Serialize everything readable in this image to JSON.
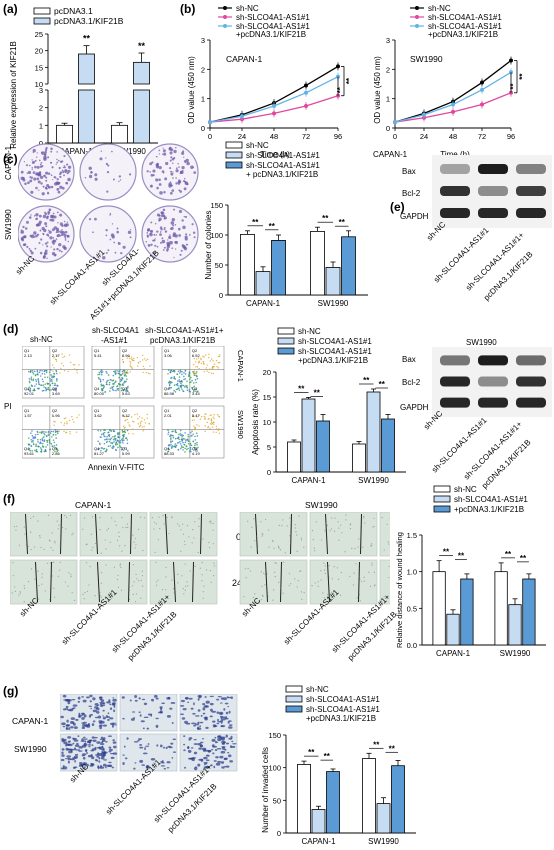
{
  "panels": {
    "a": {
      "label": "(a)",
      "ylabel": "Relative expression of KIF21B",
      "legend": [
        "pcDNA3.1",
        "pcDNA3.1/KIF21B"
      ],
      "categories": [
        "CAPAN-1",
        "SW1990"
      ],
      "sig": "**"
    },
    "b": {
      "label": "(b)",
      "legend": [
        "sh-NC",
        "sh-SLCO4A1-AS1#1",
        "sh-SLCO4A1-AS1#1",
        "+pcDNA3.1/KIF21B"
      ],
      "ylabel": "OD value (450 nm)",
      "xlabel": "Time (h)",
      "left_title": "CAPAN-1",
      "right_title": "SW1990",
      "extra_label": "CAPAN-1",
      "sig": "**"
    },
    "c": {
      "label": "(c)",
      "row_labels": [
        "CAPAN-1",
        "SW1990"
      ],
      "col_labels": [
        "sh-NC",
        "sh-SLCO4A1-AS1#1",
        "sh-SLCO4A1-",
        "AS1#1+pcDNA3.1/KIF21B"
      ],
      "legend": [
        "sh-NC",
        "sh-SLCO4A1-AS1#1",
        "sh-SLCO4A1-AS1#1",
        "+ pcDNA3.1/KIF21B"
      ],
      "ylabel": "Number of colonies"
    },
    "d": {
      "label": "(d)",
      "col_labels": [
        "sh-NC",
        "sh-SLCO4A1",
        "-AS1#1",
        "sh-SLCO4A1-AS1#1+",
        "pcDNA3.1/KIF21B"
      ],
      "row_labels": [
        "CAPAN-1",
        "SW1990"
      ],
      "ylabel_flow": "PI",
      "xlabel_flow": "Annexin V-FITC",
      "legend": [
        "sh-NC",
        "sh-SLCO4A1-AS1#1",
        "sh-SLCO4A1-AS1#1",
        "+pcDNA3.1/KIF21B"
      ],
      "ylabel": "Apoptosis rate (%)",
      "quadrants": [
        [
          [
            "Q1",
            "2.13",
            "Q2",
            "2.17",
            "Q4",
            "92.01",
            "Q3",
            "3.69"
          ],
          [
            "Q1",
            "5.41",
            "Q2",
            "8.96",
            "Q4",
            "80.00",
            "Q3",
            "5.63"
          ],
          [
            "Q1",
            "3.06",
            "Q2",
            "6.52",
            "Q4",
            "86.98",
            "Q3",
            "3.44"
          ]
        ],
        [
          [
            "Q1",
            "1.57",
            "Q2",
            "1.96",
            "Q4",
            "93.61",
            "Q3",
            "2.86"
          ],
          [
            "Q1",
            "3.62",
            "Q2",
            "9.12",
            "Q4",
            "81.27",
            "Q3",
            "5.99"
          ],
          [
            "Q1",
            "2.01",
            "Q2",
            "5.47",
            "Q4",
            "88.33",
            "Q3",
            "4.19"
          ]
        ]
      ]
    },
    "e": {
      "label": "(e)",
      "bands": [
        "Bax",
        "Bcl-2",
        "GAPDH"
      ],
      "title2": "SW1990",
      "col_labels": [
        "sh-NC",
        "sh-SLCO4A1-AS1#1",
        "sh-SLCO4A1-AS1#1+",
        "pcDNA3.1/KIF21B"
      ]
    },
    "f": {
      "label": "(f)",
      "titles": [
        "CAPAN-1",
        "SW1990"
      ],
      "times": [
        "0 h",
        "24 h"
      ],
      "col_labels": [
        "sh-NC",
        "sh-SLCO4A1-AS1#1",
        "sh-SLCO4A1-AS1#1+",
        "pcDNA3.1/KIF21B"
      ],
      "legend": [
        "sh-NC",
        "sh-SLCO4A1-AS1#1",
        "+pcDNA3.1/KIF21B"
      ],
      "ylabel": "Relative distance of wound healing"
    },
    "g": {
      "label": "(g)",
      "row_labels": [
        "CAPAN-1",
        "SW1990"
      ],
      "col_labels": [
        "sh-NC",
        "sh-SLCO4A1-AS1#1",
        "sh-SLCO4A1-AS1#1+",
        "pcDNA3.1/KIF21B"
      ],
      "legend": [
        "sh-NC",
        "sh-SLCO4A1-AS1#1",
        "sh-SLCO4A1-AS1#1",
        "+pcDNA3.1/KIF21B"
      ],
      "ylabel": "Number of invaded cells"
    }
  },
  "colors": {
    "white_bar": "#ffffff",
    "light_blue": "#c6dcf2",
    "blue": "#5b9bd5",
    "line_black": "#000000",
    "line_pink": "#e0479e",
    "line_blue": "#63b3e6",
    "purple": "#6b5aa8"
  },
  "chart_data": [
    {
      "id": "a",
      "type": "bar",
      "categories": [
        "CAPAN-1",
        "SW1990"
      ],
      "series": [
        {
          "name": "pcDNA3.1",
          "values": [
            1.0,
            1.0
          ],
          "err": [
            0.12,
            0.15
          ]
        },
        {
          "name": "pcDNA3.1/KIF21B",
          "values": [
            19.0,
            16.5
          ],
          "err": [
            2.5,
            2.8
          ]
        }
      ],
      "ylabel": "Relative expression of KIF21B",
      "yticks": [
        "0",
        "1",
        "2",
        "3",
        "10",
        "15",
        "20",
        "25"
      ]
    },
    {
      "id": "b1",
      "type": "line",
      "title": "CAPAN-1",
      "x": [
        0,
        24,
        48,
        72,
        96
      ],
      "xlabel": "Time (h)",
      "ylabel": "OD value (450 nm)",
      "ylim": [
        0,
        3
      ],
      "series": [
        {
          "name": "sh-NC",
          "values": [
            0.2,
            0.45,
            0.85,
            1.45,
            2.1
          ]
        },
        {
          "name": "sh-SLCO4A1-AS1#1",
          "values": [
            0.2,
            0.3,
            0.5,
            0.75,
            1.1
          ]
        },
        {
          "name": "sh-SLCO4A1-AS1#1 +pcDNA3.1/KIF21B",
          "values": [
            0.2,
            0.4,
            0.75,
            1.2,
            1.75
          ]
        }
      ]
    },
    {
      "id": "b2",
      "type": "line",
      "title": "SW1990",
      "x": [
        0,
        24,
        48,
        72,
        96
      ],
      "xlabel": "Time (h)",
      "ylabel": "OD value (450 nm)",
      "ylim": [
        0,
        3
      ],
      "series": [
        {
          "name": "sh-NC",
          "values": [
            0.2,
            0.5,
            0.9,
            1.55,
            2.3
          ]
        },
        {
          "name": "sh-SLCO4A1-AS1#1",
          "values": [
            0.2,
            0.35,
            0.55,
            0.8,
            1.2
          ]
        },
        {
          "name": "sh-SLCO4A1-AS1#1 +pcDNA3.1/KIF21B",
          "values": [
            0.2,
            0.45,
            0.8,
            1.3,
            1.9
          ]
        }
      ]
    },
    {
      "id": "c",
      "type": "bar",
      "categories": [
        "CAPAN-1",
        "SW1990"
      ],
      "ylabel": "Number of colonies",
      "ylim": [
        0,
        150
      ],
      "yticks": [
        "0",
        "50",
        "100",
        "150"
      ],
      "series": [
        {
          "name": "sh-NC",
          "values": [
            101,
            106
          ],
          "err": [
            6,
            7
          ]
        },
        {
          "name": "sh-SLCO4A1-AS1#1",
          "values": [
            39,
            46
          ],
          "err": [
            8,
            9
          ]
        },
        {
          "name": "sh-SLCO4A1-AS1#1 + pcDNA3.1/KIF21B",
          "values": [
            91,
            97
          ],
          "err": [
            9,
            10
          ]
        }
      ]
    },
    {
      "id": "d",
      "type": "bar",
      "categories": [
        "CAPAN-1",
        "SW1990"
      ],
      "ylabel": "Apoptosis rate (%)",
      "ylim": [
        0,
        20
      ],
      "yticks": [
        "0",
        "5",
        "10",
        "15",
        "20"
      ],
      "series": [
        {
          "name": "sh-NC",
          "values": [
            6.0,
            5.6
          ],
          "err": [
            0.4,
            0.5
          ]
        },
        {
          "name": "sh-SLCO4A1-AS1#1",
          "values": [
            14.6,
            16.0
          ],
          "err": [
            0.3,
            0.6
          ]
        },
        {
          "name": "sh-SLCO4A1-AS1#1 +pcDNA3.1/KIF21B",
          "values": [
            10.2,
            10.6
          ],
          "err": [
            1.3,
            0.9
          ]
        }
      ]
    },
    {
      "id": "f",
      "type": "bar",
      "categories": [
        "CAPAN-1",
        "SW1990"
      ],
      "ylabel": "Relative distance of wound healing",
      "ylim": [
        0,
        1.5
      ],
      "yticks": [
        "0.0",
        "0.5",
        "1.0",
        "1.5"
      ],
      "series": [
        {
          "name": "sh-NC",
          "values": [
            1.0,
            1.0
          ],
          "err": [
            0.15,
            0.12
          ]
        },
        {
          "name": "sh-SLCO4A1-AS1#1",
          "values": [
            0.42,
            0.55
          ],
          "err": [
            0.06,
            0.08
          ]
        },
        {
          "name": "sh-SLCO4A1-AS1#1 +pcDNA3.1/KIF21B",
          "values": [
            0.9,
            0.9
          ],
          "err": [
            0.07,
            0.07
          ]
        }
      ]
    },
    {
      "id": "g",
      "type": "bar",
      "categories": [
        "CAPAN-1",
        "SW1990"
      ],
      "ylabel": "Number of invaded cells",
      "ylim": [
        0,
        150
      ],
      "yticks": [
        "0",
        "50",
        "100",
        "150"
      ],
      "series": [
        {
          "name": "sh-NC",
          "values": [
            105,
            114
          ],
          "err": [
            5,
            8
          ]
        },
        {
          "name": "sh-SLCO4A1-AS1#1",
          "values": [
            36,
            45
          ],
          "err": [
            5,
            9
          ]
        },
        {
          "name": "sh-SLCO4A1-AS1#1 +pcDNA3.1/KIF21B",
          "values": [
            94,
            103
          ],
          "err": [
            4,
            8
          ]
        }
      ]
    }
  ]
}
